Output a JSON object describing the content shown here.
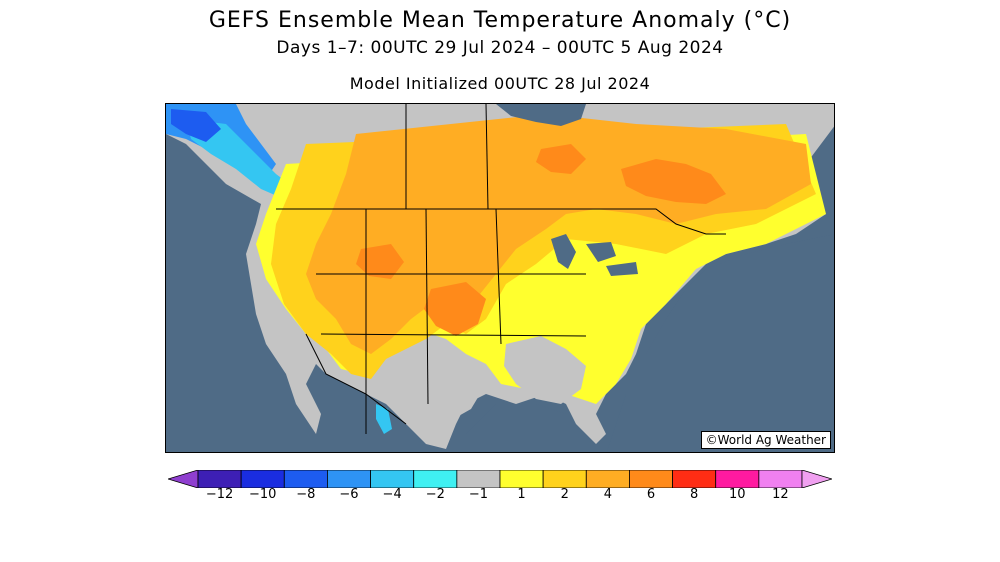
{
  "header": {
    "title": "GEFS Ensemble Mean Temperature Anomaly (°C)",
    "subtitle": "Days 1–7: 00UTC 29 Jul 2024 – 00UTC 5 Aug 2024",
    "initialized": "Model Initialized 00UTC 28 Jul 2024"
  },
  "map": {
    "region": "North America",
    "credit": "©World Ag Weather",
    "ocean_color": "#4f6b86"
  },
  "colorbar": {
    "ticks": [
      "−12",
      "−10",
      "−8",
      "−6",
      "−4",
      "−2",
      "−1",
      "1",
      "2",
      "4",
      "6",
      "8",
      "10",
      "12"
    ],
    "colors": [
      "#6a1e9c",
      "#3d1fb5",
      "#1a2de0",
      "#1d5cf0",
      "#2e93f5",
      "#34c6f2",
      "#3ff0f2",
      "#c4c4c4",
      "#ffff2e",
      "#ffd21c",
      "#ffad23",
      "#ff8a1a",
      "#ff2d14",
      "#ff1aa0",
      "#f080f0",
      "#e6b3f0"
    ],
    "lower_end_color": "#8f3fcf",
    "upper_end_color": "#f0a0f0"
  }
}
